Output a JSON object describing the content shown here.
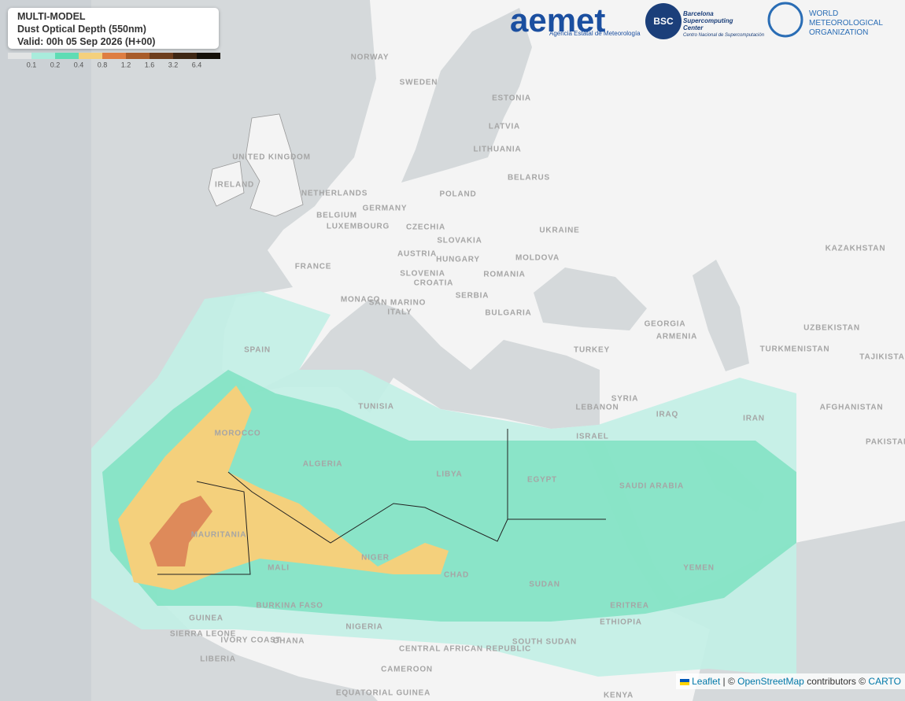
{
  "legend": {
    "title_lines": [
      "MULTI-MODEL",
      "Dust Optical Depth (550nm)",
      "Valid: 00h 05 Sep 2026 (H+00)"
    ],
    "colors": [
      "#e2e4e4",
      "#a9ecdc",
      "#5fdcb4",
      "#f4d07c",
      "#de7e42",
      "#a85c2a",
      "#6e3f1e",
      "#3e2714",
      "#141009"
    ],
    "ticks": [
      0.1,
      0.2,
      0.4,
      0.8,
      1.2,
      1.6,
      3.2,
      6.4
    ]
  },
  "logos": {
    "aemet": "aemet",
    "aemet_subtitle": "Agencia Estatal de Meteorología",
    "bsc": "BSC",
    "bsc_lines": [
      "Barcelona",
      "Supercomputing",
      "Center"
    ],
    "bsc_subtitle": "Centro Nacional de Supercomputación",
    "wmo_lines": [
      "WORLD",
      "METEOROLOGICAL",
      "ORGANIZATION"
    ]
  },
  "countries": [
    "NORWAY",
    "SWEDEN",
    "ESTONIA",
    "LATVIA",
    "LITHUANIA",
    "BELARUS",
    "POLAND",
    "GERMANY",
    "NETHERLANDS",
    "BELGIUM",
    "LUXEMBOURG",
    "UNITED KINGDOM",
    "IRELAND",
    "FRANCE",
    "CZECHIA",
    "SLOVAKIA",
    "AUSTRIA",
    "HUNGARY",
    "SLOVENIA",
    "CROATIA",
    "ROMANIA",
    "MOLDOVA",
    "UKRAINE",
    "SERBIA",
    "BULGARIA",
    "MONACO",
    "SAN MARINO",
    "ITALY",
    "SPAIN",
    "TURKEY",
    "GEORGIA",
    "ARMENIA",
    "KAZAKHSTAN",
    "UZBEKISTAN",
    "TURKMENISTAN",
    "TAJIKISTAN",
    "AFGHANISTAN",
    "PAKISTAN",
    "IRAN",
    "IRAQ",
    "SYRIA",
    "LEBANON",
    "ISRAEL",
    "SAUDI ARABIA",
    "YEMEN",
    "EGYPT",
    "LIBYA",
    "TUNISIA",
    "ALGERIA",
    "MOROCCO",
    "MAURITANIA",
    "MALI",
    "NIGER",
    "CHAD",
    "SUDAN",
    "ERITREA",
    "ETHIOPIA",
    "SOUTH SUDAN",
    "KENYA",
    "NIGERIA",
    "CAMEROON",
    "CENTRAL AFRICAN REPUBLIC",
    "BURKINA FASO",
    "GHANA",
    "IVORY COAST",
    "GUINEA",
    "SIERRA LEONE",
    "LIBERIA",
    "EQUATORIAL GUINEA"
  ],
  "attribution": {
    "leaflet": "Leaflet",
    "separator": "| ©",
    "osm": "OpenStreetMap",
    "contributors": "contributors ©",
    "carto": "CARTO"
  }
}
